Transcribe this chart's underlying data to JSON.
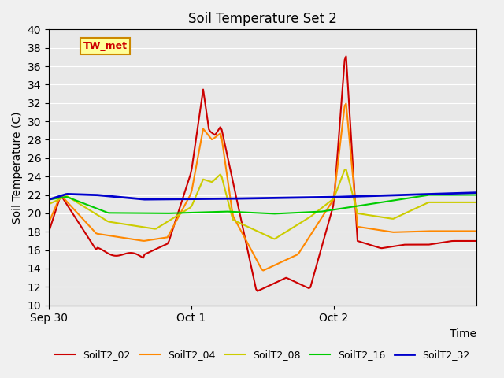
{
  "title": "Soil Temperature Set 2",
  "ylabel": "Soil Temperature (C)",
  "xlabel": "Time",
  "ylim": [
    10,
    40
  ],
  "yticks": [
    10,
    12,
    14,
    16,
    18,
    20,
    22,
    24,
    26,
    28,
    30,
    32,
    34,
    36,
    38,
    40
  ],
  "xtick_labels": [
    "Sep 30",
    "Oct 1",
    "Oct 2"
  ],
  "annotation_label": "TW_met",
  "bg_color": "#e8e8e8",
  "line_colors": {
    "SoilT2_02": "#cc0000",
    "SoilT2_04": "#ff8800",
    "SoilT2_08": "#cccc00",
    "SoilT2_16": "#00cc00",
    "SoilT2_32": "#0000cc"
  },
  "legend_labels": [
    "SoilT2_02",
    "SoilT2_04",
    "SoilT2_08",
    "SoilT2_16",
    "SoilT2_32"
  ]
}
